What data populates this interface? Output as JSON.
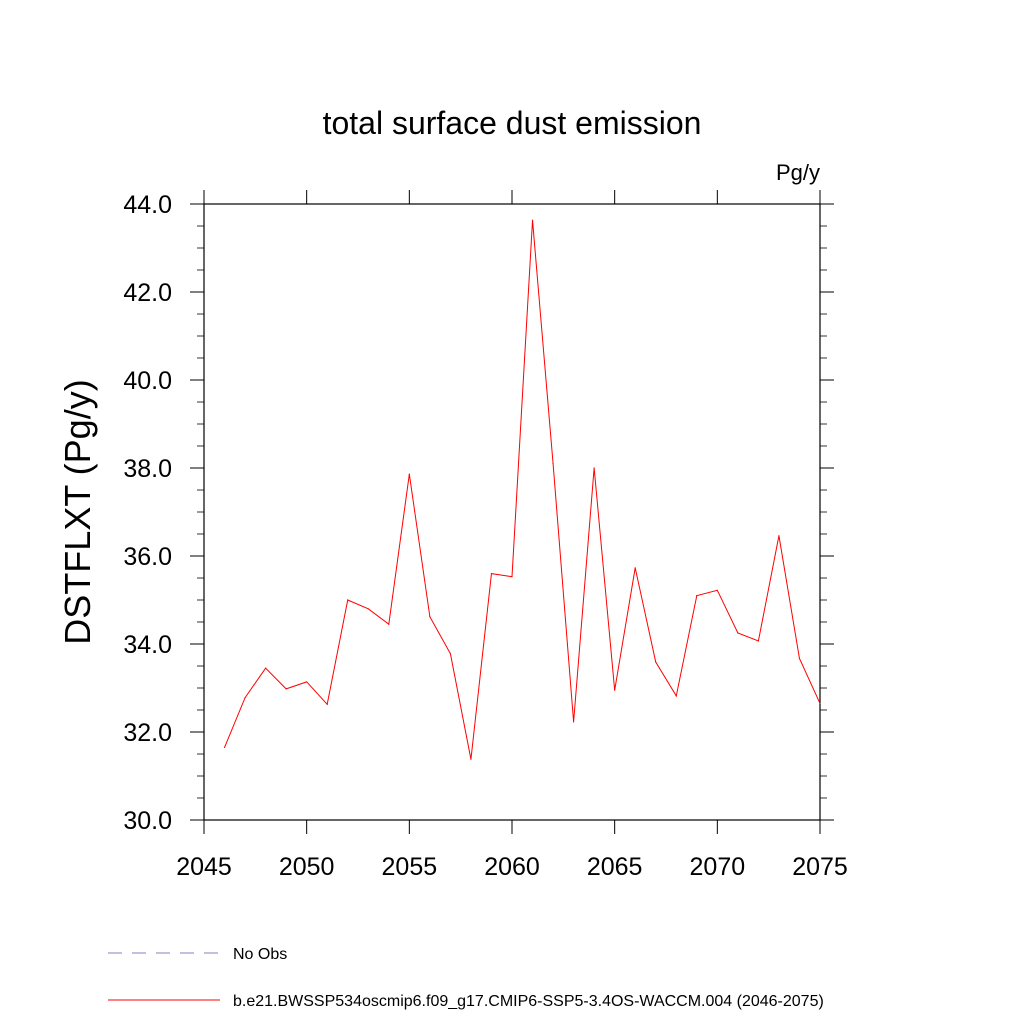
{
  "chart_data": {
    "type": "line",
    "title": "total surface dust emission",
    "units_label": "Pg/y",
    "ylabel": "DSTFLXT  (Pg/y)",
    "xlabel": "",
    "xlim": [
      2045,
      2075
    ],
    "ylim": [
      30.0,
      44.0
    ],
    "x_ticks": [
      2045,
      2050,
      2055,
      2060,
      2065,
      2070,
      2075
    ],
    "x_tick_labels": [
      "2045",
      "2050",
      "2055",
      "2060",
      "2065",
      "2070",
      "2075"
    ],
    "y_ticks": [
      30,
      32,
      34,
      36,
      38,
      40,
      42,
      44
    ],
    "y_tick_labels": [
      "30.0",
      "32.0",
      "34.0",
      "36.0",
      "38.0",
      "40.0",
      "42.0",
      "44.0"
    ],
    "grid": false,
    "legend_position": "bottom-left",
    "series": [
      {
        "name": "b.e21.BWSSP534oscmip6.f09_g17.CMIP6-SSP5-3.4OS-WACCM.004 (2046-2075)",
        "color": "#ff0000",
        "style": "solid",
        "x": [
          2046,
          2047,
          2048,
          2049,
          2050,
          2051,
          2052,
          2053,
          2054,
          2055,
          2056,
          2057,
          2058,
          2059,
          2060,
          2061,
          2062,
          2063,
          2064,
          2065,
          2066,
          2067,
          2068,
          2069,
          2070,
          2071,
          2072,
          2073,
          2074,
          2075
        ],
        "values": [
          31.65,
          32.78,
          33.45,
          32.98,
          33.14,
          32.63,
          35.0,
          34.8,
          34.45,
          37.86,
          34.62,
          33.78,
          31.38,
          35.6,
          35.53,
          43.63,
          38.1,
          32.23,
          38.0,
          32.95,
          35.73,
          33.59,
          32.82,
          35.1,
          35.22,
          34.25,
          34.07,
          36.46,
          33.67,
          32.65
        ]
      }
    ],
    "legend": [
      {
        "label": "No Obs",
        "color": "#8080c0",
        "style": "dashed"
      },
      {
        "label": "b.e21.BWSSP534oscmip6.f09_g17.CMIP6-SSP5-3.4OS-WACCM.004 (2046-2075)",
        "color": "#ff0000",
        "style": "solid"
      }
    ]
  }
}
